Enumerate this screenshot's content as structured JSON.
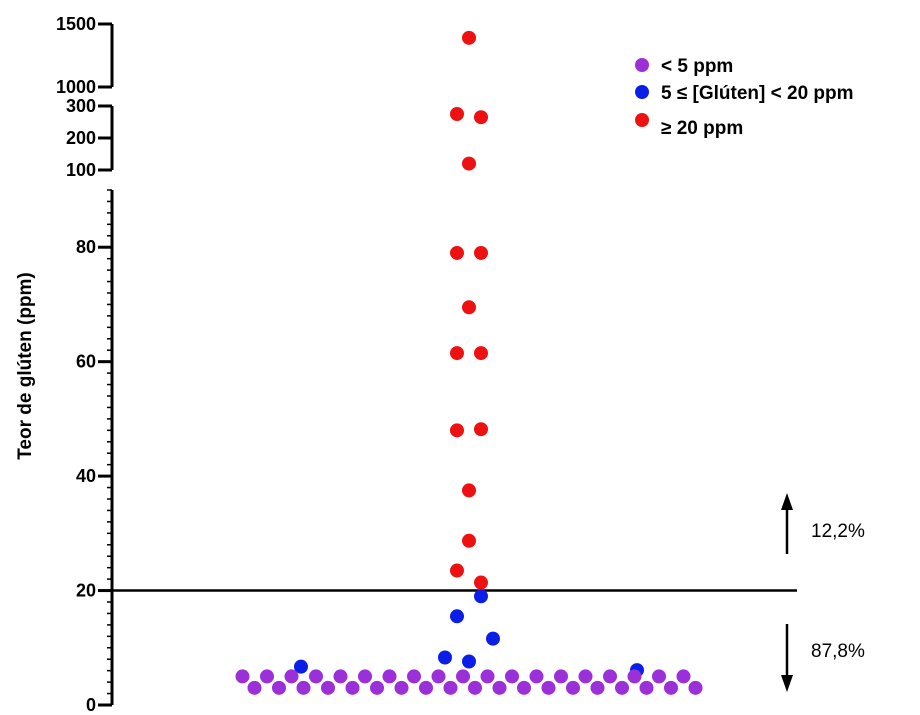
{
  "chart_data": {
    "type": "scatter",
    "ylabel": "Teor de glúten (ppm)",
    "xlabel": "",
    "y_axis_segments": [
      {
        "ylim": [
          0,
          90
        ],
        "ticks": [
          0,
          20,
          40,
          60,
          80
        ],
        "tick_labels": [
          "0",
          "20",
          "40",
          "60",
          "80"
        ]
      },
      {
        "ylim": [
          100,
          300
        ],
        "ticks": [
          100,
          200,
          300
        ],
        "tick_labels": [
          "100",
          "200",
          "300"
        ]
      },
      {
        "ylim": [
          1000,
          1500
        ],
        "ticks": [
          1000,
          1500
        ],
        "tick_labels": [
          "1000",
          "1500"
        ]
      }
    ],
    "threshold": {
      "value": 20,
      "label_above": "12,2%",
      "label_below": "87,8%"
    },
    "colors": {
      "lt5": "#9b30d9",
      "mid": "#0a1ee8",
      "ge20": "#ee1111"
    },
    "legend": {
      "position": "top-right",
      "entries": [
        {
          "key": "lt5",
          "label": "< 5 ppm"
        },
        {
          "key": "mid",
          "label": "5 ≤ [Glúten] < 20 ppm"
        },
        {
          "key": "ge20",
          "label": "≥ 20 ppm"
        }
      ]
    },
    "series": [
      {
        "key": "ge20",
        "points": [
          {
            "offset": 0,
            "y": 1390
          },
          {
            "offset": -1,
            "y": 275
          },
          {
            "offset": 1,
            "y": 265
          },
          {
            "offset": 0,
            "y": 120
          },
          {
            "offset": -1,
            "y": 79
          },
          {
            "offset": 1,
            "y": 79
          },
          {
            "offset": 0,
            "y": 69.5
          },
          {
            "offset": -1,
            "y": 61.5
          },
          {
            "offset": 1,
            "y": 61.5
          },
          {
            "offset": -1,
            "y": 48
          },
          {
            "offset": 1,
            "y": 48.2
          },
          {
            "offset": 0,
            "y": 37.5
          },
          {
            "offset": 0,
            "y": 28.7
          },
          {
            "offset": -1,
            "y": 23.5
          },
          {
            "offset": 1,
            "y": 21.4
          }
        ]
      },
      {
        "key": "mid",
        "points": [
          {
            "offset": 1,
            "y": 19
          },
          {
            "offset": -1,
            "y": 15.5
          },
          {
            "offset": 2,
            "y": 11.6
          },
          {
            "offset": -2,
            "y": 8.3
          },
          {
            "offset": 0,
            "y": 7.6
          },
          {
            "offset": -14,
            "y": 6.7
          },
          {
            "offset": 14,
            "y": 6.1
          }
        ]
      },
      {
        "key": "lt5",
        "rows": [
          {
            "y": 5,
            "count": 19
          },
          {
            "y": 3,
            "count": 19
          }
        ]
      }
    ]
  }
}
